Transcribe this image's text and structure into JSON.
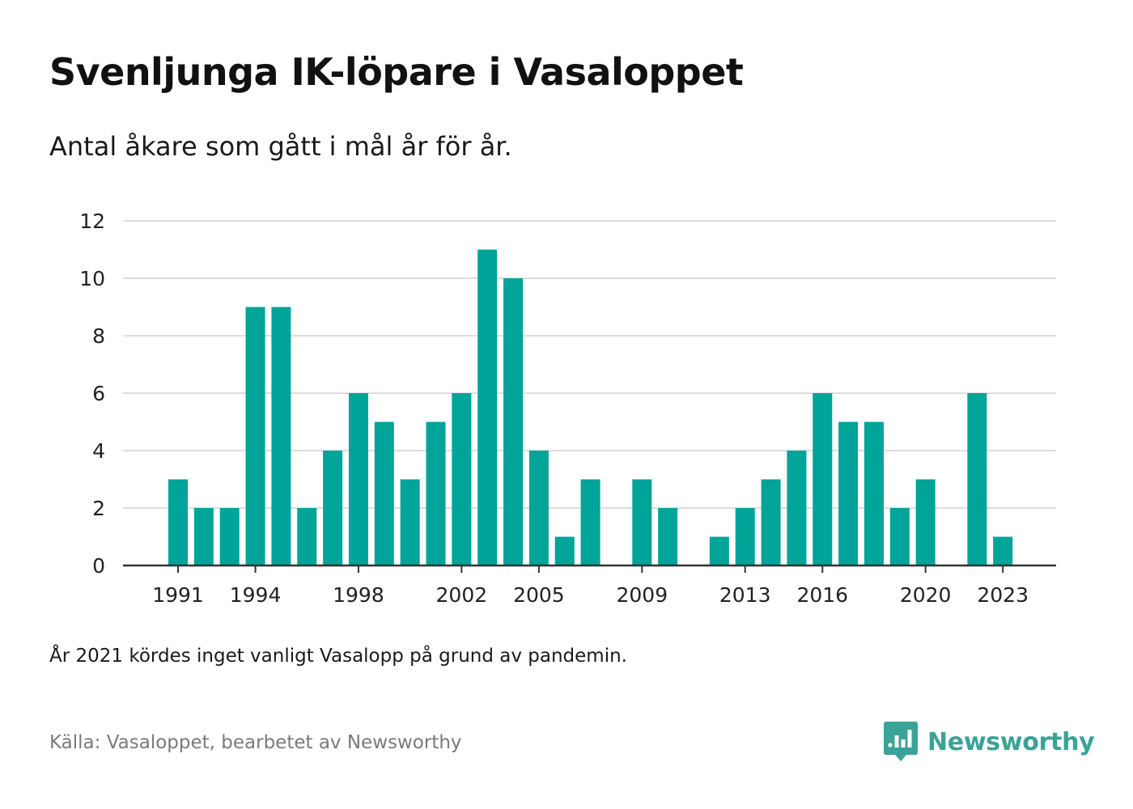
{
  "title": "Svenljunga IK-löpare i Vasaloppet",
  "subtitle": "Antal åkare som gått i mål år för år.",
  "note": "År 2021 kördes inget vanligt Vasalopp på grund av pandemin.",
  "source": "Källa: Vasaloppet, bearbetet av Newsworthy",
  "logo_text": "Newsworthy",
  "colors": {
    "bar": "#00a499",
    "grid": "#dddddd",
    "axis": "#333333",
    "brand": "#3aa397"
  },
  "chart_data": {
    "type": "bar",
    "categories": [
      "1991",
      "1992",
      "1993",
      "1994",
      "1995",
      "1996",
      "1997",
      "1998",
      "1999",
      "2000",
      "2001",
      "2002",
      "2003",
      "2004",
      "2005",
      "2006",
      "2007",
      "2008",
      "2009",
      "2010",
      "2011",
      "2012",
      "2013",
      "2014",
      "2015",
      "2016",
      "2017",
      "2018",
      "2019",
      "2020",
      "2021",
      "2022",
      "2023"
    ],
    "values": [
      3,
      2,
      2,
      9,
      9,
      2,
      4,
      6,
      5,
      3,
      5,
      6,
      11,
      10,
      4,
      1,
      3,
      0,
      3,
      2,
      0,
      1,
      2,
      3,
      4,
      6,
      5,
      5,
      2,
      3,
      0,
      6,
      1
    ],
    "xtick_labels": [
      "1991",
      "1994",
      "1998",
      "2002",
      "2005",
      "2009",
      "2013",
      "2016",
      "2020",
      "2023"
    ],
    "yticks": [
      0,
      2,
      4,
      6,
      8,
      10,
      12
    ],
    "ylim": [
      0,
      12
    ],
    "xlabel": "",
    "ylabel": "",
    "grid": true,
    "legend": false
  }
}
